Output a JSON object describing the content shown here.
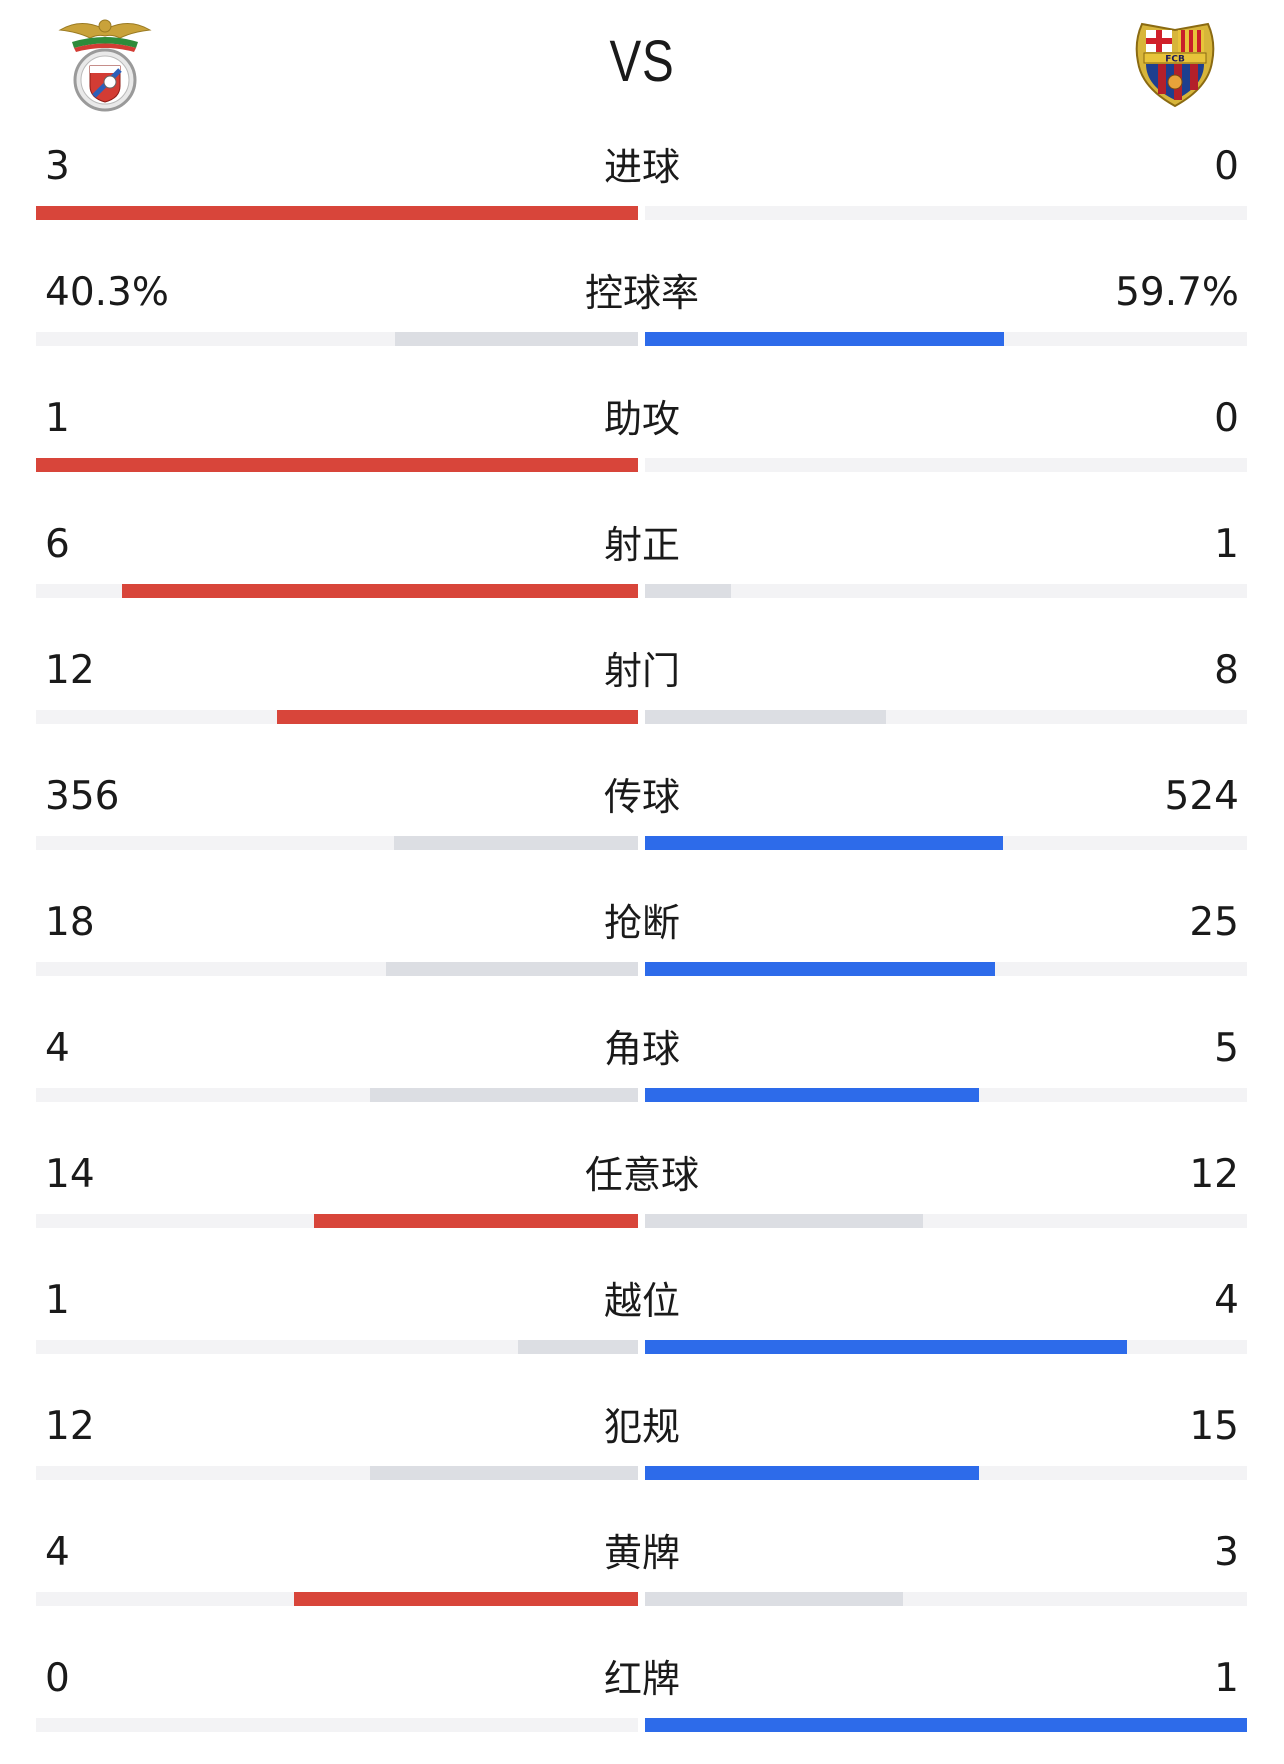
{
  "header": {
    "vs_text": "VS",
    "home_crest_icon": "benfica-crest-icon",
    "away_crest_icon": "fc-barcelona-crest-icon",
    "away_crest_text": "FCB"
  },
  "colors": {
    "home_leading": "#d8453a",
    "away_leading": "#2d6bea",
    "trailing": "#dcdee3",
    "track": "#f3f3f5"
  },
  "stats": [
    {
      "label": "进球",
      "home": "3",
      "away": "0",
      "home_value": 3,
      "away_value": 0
    },
    {
      "label": "控球率",
      "home": "40.3%",
      "away": "59.7%",
      "home_value": 40.3,
      "away_value": 59.7
    },
    {
      "label": "助攻",
      "home": "1",
      "away": "0",
      "home_value": 1,
      "away_value": 0
    },
    {
      "label": "射正",
      "home": "6",
      "away": "1",
      "home_value": 6,
      "away_value": 1
    },
    {
      "label": "射门",
      "home": "12",
      "away": "8",
      "home_value": 12,
      "away_value": 8
    },
    {
      "label": "传球",
      "home": "356",
      "away": "524",
      "home_value": 356,
      "away_value": 524
    },
    {
      "label": "抢断",
      "home": "18",
      "away": "25",
      "home_value": 18,
      "away_value": 25
    },
    {
      "label": "角球",
      "home": "4",
      "away": "5",
      "home_value": 4,
      "away_value": 5
    },
    {
      "label": "任意球",
      "home": "14",
      "away": "12",
      "home_value": 14,
      "away_value": 12
    },
    {
      "label": "越位",
      "home": "1",
      "away": "4",
      "home_value": 1,
      "away_value": 4
    },
    {
      "label": "犯规",
      "home": "12",
      "away": "15",
      "home_value": 12,
      "away_value": 15
    },
    {
      "label": "黄牌",
      "home": "4",
      "away": "3",
      "home_value": 4,
      "away_value": 3
    },
    {
      "label": "红牌",
      "home": "0",
      "away": "1",
      "home_value": 0,
      "away_value": 1
    }
  ]
}
